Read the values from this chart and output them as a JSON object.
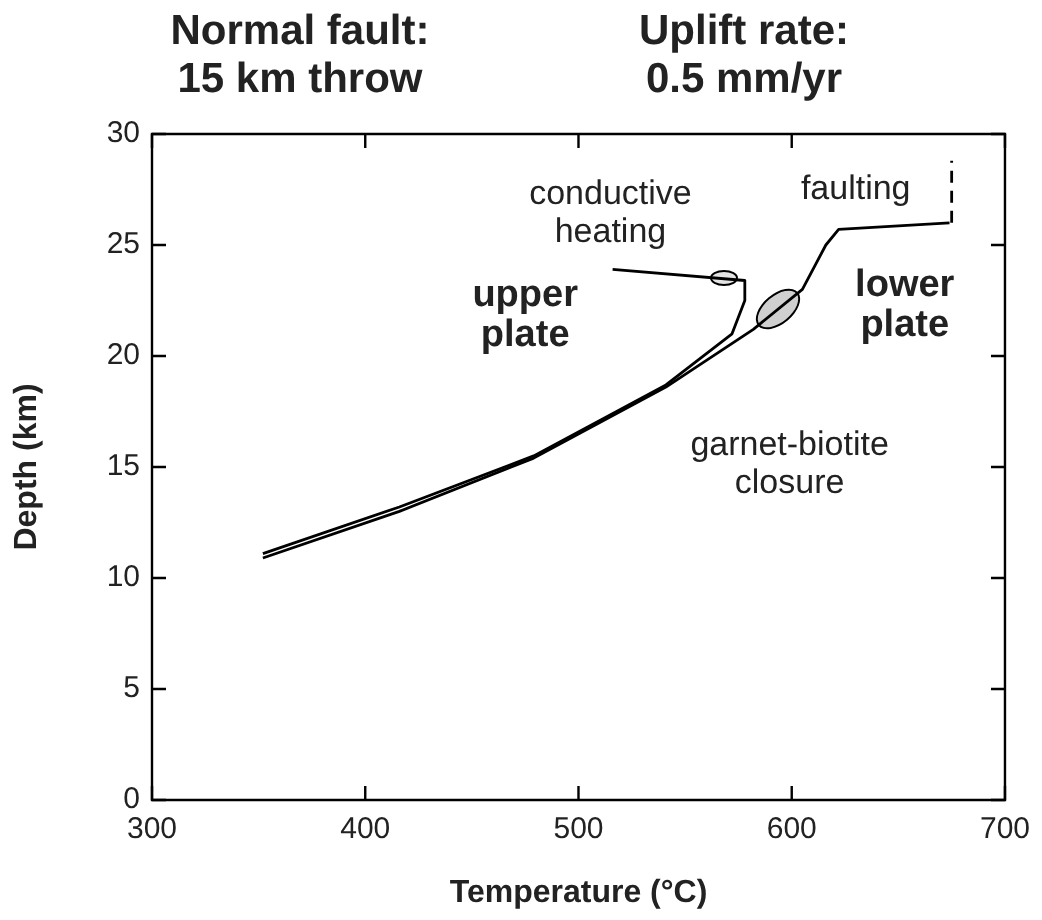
{
  "chart_data": {
    "type": "line",
    "title": "Normal fault: 15 km throw",
    "subtitle": "Uplift rate: 0.5 mm/yr",
    "xlabel": "Temperature (°C)",
    "ylabel": "Depth (km)",
    "xlim": [
      300,
      700
    ],
    "xticks": [
      300,
      400,
      500,
      600,
      700
    ],
    "ylim": [
      0,
      30
    ],
    "yticks": [
      0,
      5,
      10,
      15,
      20,
      25,
      30
    ],
    "grid": false,
    "legend": false,
    "marker": "none",
    "series": [
      {
        "color": "#000000",
        "x": [
          352,
          416,
          479,
          541,
          572,
          578,
          578,
          516
        ],
        "values": [
          11.1,
          13.2,
          15.5,
          18.7,
          21.0,
          22.5,
          23.4,
          23.9
        ]
      },
      {
        "color": "#000000",
        "x": [
          352,
          416,
          479,
          541,
          582,
          605,
          616,
          622,
          674
        ],
        "values": [
          10.9,
          13.0,
          15.4,
          18.6,
          21.2,
          23.0,
          25.0,
          25.7,
          26.0
        ]
      },
      {
        "color": "#000000",
        "line_style": "dashed",
        "x": [
          675,
          675
        ],
        "values": [
          26.0,
          28.8
        ]
      }
    ],
    "annotations": [
      "conductive heating",
      "faulting",
      "upper plate",
      "lower plate",
      "garnet-biotite closure"
    ]
  }
}
